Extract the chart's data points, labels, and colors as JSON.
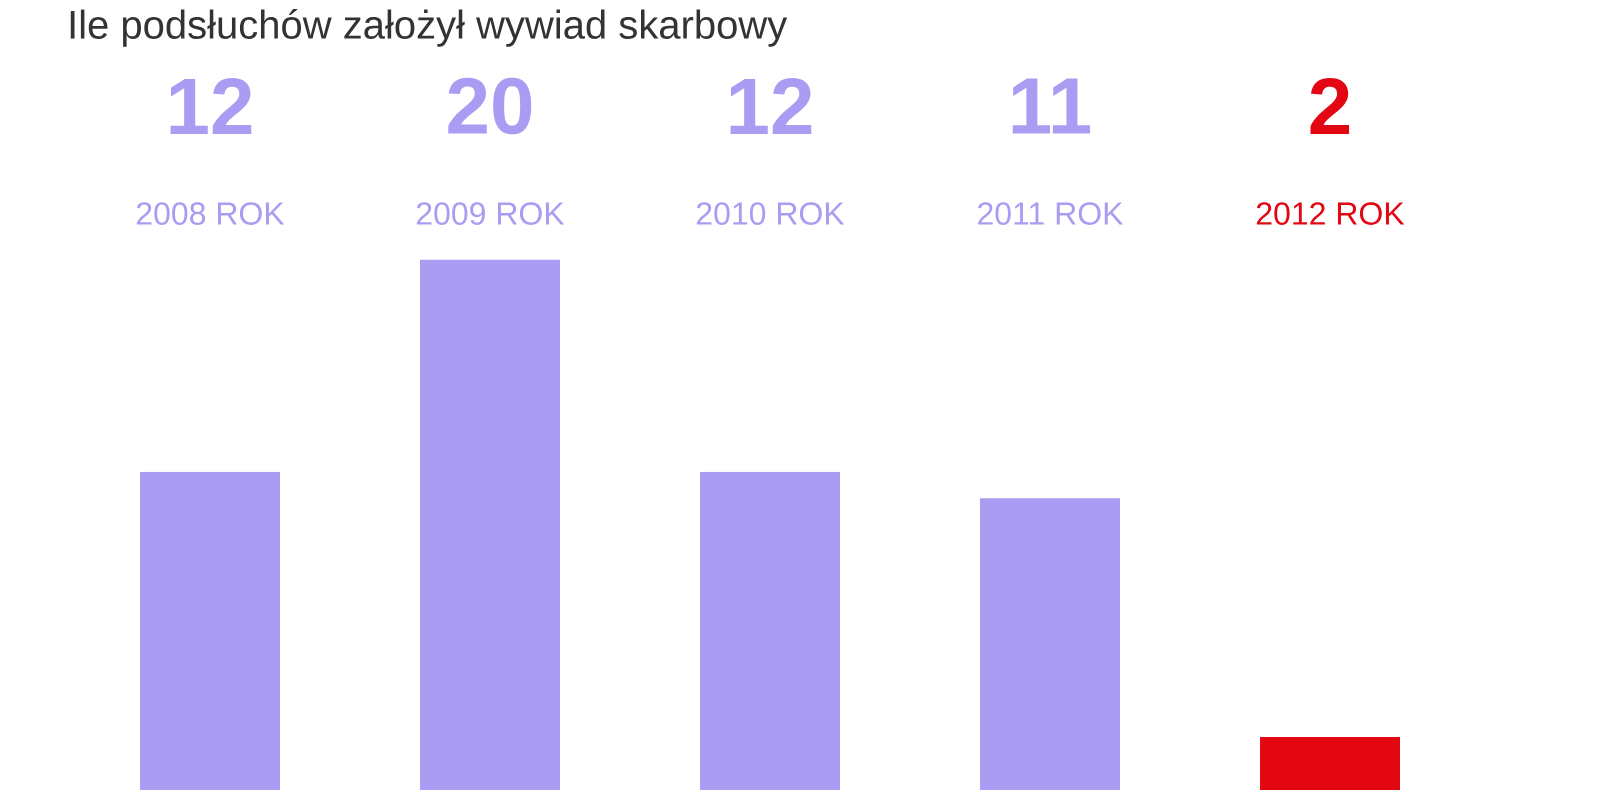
{
  "chart_data": {
    "type": "bar",
    "title": "Ile podsłuchów założył wywiad skarbowy",
    "categories": [
      "2008 ROK",
      "2009 ROK",
      "2010 ROK",
      "2011 ROK",
      "2012 ROK"
    ],
    "values": [
      12,
      20,
      12,
      11,
      2
    ],
    "colors": [
      "#a99cf2",
      "#a99cf2",
      "#a99cf2",
      "#a99cf2",
      "#e30613"
    ],
    "data_labels": true
  }
}
